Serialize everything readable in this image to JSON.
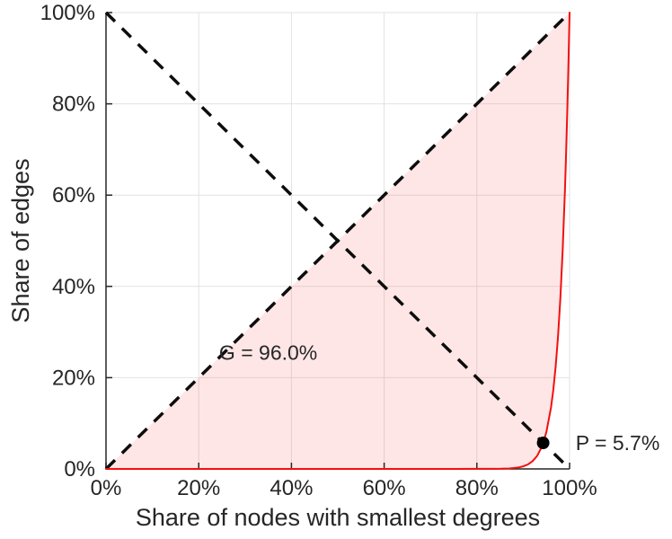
{
  "chart_data": {
    "type": "line",
    "xlabel": "Share of nodes with smallest degrees",
    "ylabel": "Share of edges",
    "xlim": [
      0,
      100
    ],
    "ylim": [
      0,
      100
    ],
    "xticks": [
      0,
      20,
      40,
      60,
      80,
      100
    ],
    "yticks": [
      0,
      20,
      40,
      60,
      80,
      100
    ],
    "tick_label_suffix": "%",
    "grid": true,
    "grid_color": "#e2e2e2",
    "axis_color": "#262626",
    "gini_percent": 96.0,
    "p_percent": 5.7,
    "series": [
      {
        "name": "lorenz-curve",
        "color": "#f40f0f",
        "width": 2,
        "points": [
          [
            0,
            0
          ],
          [
            5,
            0
          ],
          [
            10,
            0
          ],
          [
            20,
            0
          ],
          [
            30,
            0
          ],
          [
            40,
            0
          ],
          [
            50,
            0
          ],
          [
            60,
            0
          ],
          [
            70,
            0
          ],
          [
            75,
            0.01
          ],
          [
            80,
            0.02
          ],
          [
            83,
            0.03
          ],
          [
            85,
            0.04
          ],
          [
            87,
            0.11
          ],
          [
            89,
            0.33
          ],
          [
            90,
            0.57
          ],
          [
            91,
            0.98
          ],
          [
            92,
            1.68
          ],
          [
            93,
            2.85
          ],
          [
            94,
            4.83
          ],
          [
            94.3,
            5.7
          ],
          [
            95,
            8.1
          ],
          [
            96,
            13.5
          ],
          [
            96.5,
            17.4
          ],
          [
            97,
            22.5
          ],
          [
            97.5,
            28.9
          ],
          [
            98,
            37.2
          ],
          [
            98.5,
            47.7
          ],
          [
            99,
            61.1
          ],
          [
            99.2,
            67.5
          ],
          [
            99.5,
            78.2
          ],
          [
            99.7,
            86.3
          ],
          [
            99.9,
            95.2
          ],
          [
            100,
            100
          ]
        ]
      }
    ],
    "reference_lines": [
      {
        "name": "equality-diagonal",
        "from": [
          0,
          0
        ],
        "to": [
          100,
          100
        ],
        "style": "dashed",
        "color": "#0d0d0d",
        "width": 3.5
      },
      {
        "name": "anti-diagonal",
        "from": [
          0,
          100
        ],
        "to": [
          100,
          0
        ],
        "style": "dashed",
        "color": "#0d0d0d",
        "width": 3.5
      }
    ],
    "shaded_region": {
      "between": "equality-diagonal and lorenz-curve",
      "fill": "#ff5050",
      "opacity": 0.14
    },
    "point_marker": {
      "x": 94.3,
      "y": 5.7,
      "color": "#000000",
      "radius": 7
    },
    "annotations": [
      {
        "id": "gini-annotation",
        "text": "G = 96.0%",
        "x": 35,
        "y": 25.5,
        "anchor": "middle"
      },
      {
        "id": "p-annotation",
        "text": "P = 5.7%",
        "x": 101.3,
        "y": 5.7,
        "anchor": "start"
      }
    ]
  }
}
